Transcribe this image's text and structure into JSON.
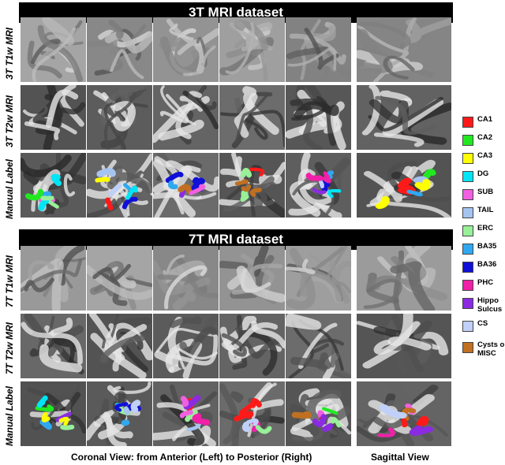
{
  "sections": [
    {
      "title": "3T MRI dataset",
      "rows": [
        "3T T1w MRI",
        "3T T2w MRI",
        "Manual Label"
      ]
    },
    {
      "title": "7T MRI dataset",
      "rows": [
        "7T T1w MRI",
        "7T T2w MRI",
        "Manual Label"
      ]
    }
  ],
  "legend": [
    {
      "label": "CA1",
      "color": "#ff1a1a"
    },
    {
      "label": "CA2",
      "color": "#22e822"
    },
    {
      "label": "CA3",
      "color": "#ffff00"
    },
    {
      "label": "DG",
      "color": "#00e5f5"
    },
    {
      "label": "SUB",
      "color": "#f060e0"
    },
    {
      "label": "TAIL",
      "color": "#a6c4f0"
    },
    {
      "label": "ERC",
      "color": "#98f098"
    },
    {
      "label": "BA35",
      "color": "#30a8f0"
    },
    {
      "label": "BA36",
      "color": "#1010d8"
    },
    {
      "label": "PHC",
      "color": "#f020a8"
    },
    {
      "label": "Hippo Sulcus",
      "color": "#8a2be2"
    },
    {
      "label": "CS",
      "color": "#c0d0f8"
    },
    {
      "label": "Cysts or MISC",
      "color": "#c07020"
    }
  ],
  "footer": {
    "coronal": "Coronal View: from Anterior (Left) to Posterior (Right)",
    "sagittal": "Sagittal View"
  }
}
